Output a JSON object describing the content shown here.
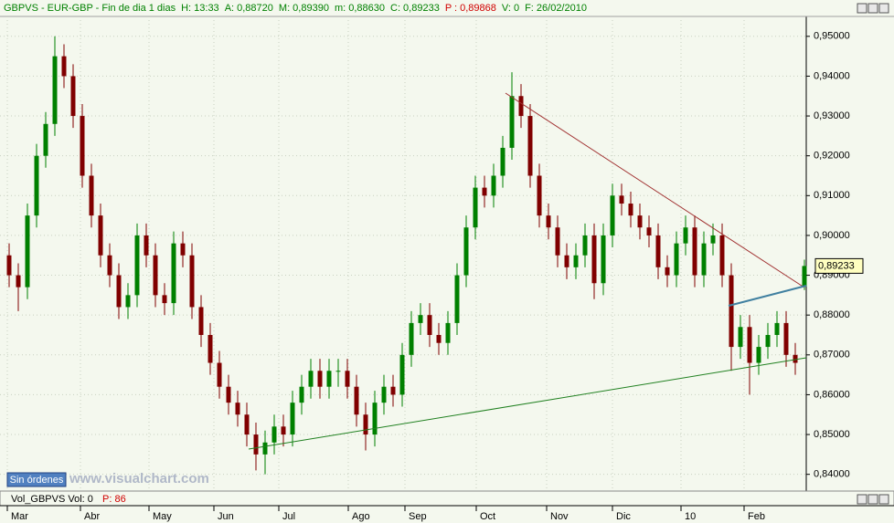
{
  "chart_data": {
    "type": "candlestick",
    "header": [
      {
        "text": "GBPVS - EUR-GBP - Fin de dia 1 dias",
        "color": "#008000"
      },
      {
        "text": "H: 13:33",
        "color": "#008000"
      },
      {
        "text": "A: 0,88720",
        "color": "#008000"
      },
      {
        "text": "M: 0,89390",
        "color": "#008000"
      },
      {
        "text": "m: 0,88630",
        "color": "#008000"
      },
      {
        "text": "C: 0,89233",
        "color": "#008000"
      },
      {
        "text": "P : 0,89868",
        "color": "#d00000"
      },
      {
        "text": "V: 0",
        "color": "#008000"
      },
      {
        "text": "F: 26/02/2010",
        "color": "#008000"
      }
    ],
    "volume_header": "Vol_GBPVS  Vol: 0",
    "volume_p": "P: 86",
    "status": "Sin órdenes",
    "watermark": "www.visualchart.com",
    "last_price": {
      "value": 0.89233,
      "label": "0,89233"
    },
    "up_color": "#008000",
    "down_color": "#800000",
    "grid": true,
    "xlim": [
      -1,
      87.2
    ],
    "xticks": [
      {
        "value": -0.2,
        "label": "Mar"
      },
      {
        "value": 7.8,
        "label": "Abr"
      },
      {
        "value": 15.3,
        "label": "May"
      },
      {
        "value": 22.4,
        "label": "Jun"
      },
      {
        "value": 29.5,
        "label": "Jul"
      },
      {
        "value": 37.1,
        "label": "Ago"
      },
      {
        "value": 43.3,
        "label": "Sep"
      },
      {
        "value": 51.1,
        "label": "Oct"
      },
      {
        "value": 58.8,
        "label": "Nov"
      },
      {
        "value": 66,
        "label": "Dic"
      },
      {
        "value": 73.5,
        "label": "10"
      },
      {
        "value": 80.4,
        "label": "Feb"
      }
    ],
    "ylim": [
      0.8358,
      0.955
    ],
    "yticks": [
      {
        "value": 0.84,
        "label": "0,84000"
      },
      {
        "value": 0.85,
        "label": "0,85000"
      },
      {
        "value": 0.86,
        "label": "0,86000"
      },
      {
        "value": 0.87,
        "label": "0,87000"
      },
      {
        "value": 0.88,
        "label": "0,88000"
      },
      {
        "value": 0.89,
        "label": "0,89000"
      },
      {
        "value": 0.9,
        "label": "0,90000"
      },
      {
        "value": 0.91,
        "label": "0,91000"
      },
      {
        "value": 0.92,
        "label": "0,92000"
      },
      {
        "value": 0.93,
        "label": "0,93000"
      },
      {
        "value": 0.94,
        "label": "0,94000"
      },
      {
        "value": 0.95,
        "label": "0,95000"
      }
    ],
    "open": [
      0.895,
      0.89,
      0.887,
      0.905,
      0.92,
      0.928,
      0.945,
      0.94,
      0.93,
      0.915,
      0.905,
      0.895,
      0.89,
      0.882,
      0.885,
      0.9,
      0.895,
      0.885,
      0.883,
      0.898,
      0.895,
      0.882,
      0.875,
      0.868,
      0.862,
      0.858,
      0.855,
      0.85,
      0.845,
      0.848,
      0.852,
      0.85,
      0.858,
      0.862,
      0.866,
      0.862,
      0.866,
      0.866,
      0.862,
      0.855,
      0.85,
      0.858,
      0.862,
      0.86,
      0.87,
      0.878,
      0.88,
      0.875,
      0.873,
      0.878,
      0.89,
      0.902,
      0.912,
      0.91,
      0.915,
      0.922,
      0.935,
      0.93,
      0.915,
      0.905,
      0.902,
      0.895,
      0.892,
      0.895,
      0.9,
      0.888,
      0.9,
      0.91,
      0.908,
      0.905,
      0.902,
      0.9,
      0.892,
      0.89,
      0.898,
      0.902,
      0.89,
      0.898,
      0.9,
      0.89,
      0.872,
      0.877,
      0.868,
      0.872,
      0.875,
      0.878,
      0.87,
      0.8872
    ],
    "high": [
      0.898,
      0.893,
      0.908,
      0.923,
      0.931,
      0.95,
      0.948,
      0.943,
      0.933,
      0.918,
      0.908,
      0.898,
      0.893,
      0.888,
      0.903,
      0.903,
      0.898,
      0.888,
      0.901,
      0.901,
      0.898,
      0.885,
      0.878,
      0.871,
      0.865,
      0.861,
      0.858,
      0.853,
      0.851,
      0.855,
      0.855,
      0.861,
      0.865,
      0.869,
      0.869,
      0.869,
      0.869,
      0.869,
      0.865,
      0.858,
      0.861,
      0.865,
      0.865,
      0.873,
      0.881,
      0.883,
      0.883,
      0.878,
      0.881,
      0.893,
      0.905,
      0.915,
      0.915,
      0.918,
      0.925,
      0.941,
      0.938,
      0.933,
      0.918,
      0.908,
      0.905,
      0.898,
      0.898,
      0.903,
      0.903,
      0.903,
      0.913,
      0.913,
      0.911,
      0.908,
      0.905,
      0.903,
      0.895,
      0.901,
      0.905,
      0.905,
      0.901,
      0.903,
      0.903,
      0.893,
      0.88,
      0.88,
      0.875,
      0.878,
      0.881,
      0.881,
      0.873,
      0.8939
    ],
    "low": [
      0.887,
      0.881,
      0.884,
      0.902,
      0.917,
      0.925,
      0.937,
      0.927,
      0.912,
      0.902,
      0.892,
      0.887,
      0.879,
      0.879,
      0.882,
      0.892,
      0.882,
      0.88,
      0.88,
      0.892,
      0.879,
      0.872,
      0.865,
      0.859,
      0.855,
      0.852,
      0.847,
      0.841,
      0.84,
      0.845,
      0.847,
      0.847,
      0.855,
      0.859,
      0.859,
      0.859,
      0.862,
      0.859,
      0.852,
      0.846,
      0.847,
      0.855,
      0.857,
      0.857,
      0.867,
      0.875,
      0.872,
      0.87,
      0.87,
      0.875,
      0.887,
      0.899,
      0.907,
      0.907,
      0.912,
      0.919,
      0.927,
      0.912,
      0.902,
      0.899,
      0.892,
      0.889,
      0.889,
      0.892,
      0.884,
      0.885,
      0.897,
      0.905,
      0.902,
      0.899,
      0.897,
      0.889,
      0.887,
      0.887,
      0.895,
      0.887,
      0.887,
      0.895,
      0.887,
      0.866,
      0.869,
      0.86,
      0.865,
      0.869,
      0.872,
      0.867,
      0.865,
      0.8863
    ],
    "close": [
      0.89,
      0.887,
      0.905,
      0.92,
      0.928,
      0.945,
      0.94,
      0.93,
      0.915,
      0.905,
      0.895,
      0.89,
      0.882,
      0.885,
      0.9,
      0.895,
      0.885,
      0.883,
      0.898,
      0.895,
      0.882,
      0.875,
      0.868,
      0.862,
      0.858,
      0.855,
      0.85,
      0.845,
      0.848,
      0.852,
      0.85,
      0.858,
      0.862,
      0.866,
      0.862,
      0.866,
      0.866,
      0.862,
      0.855,
      0.85,
      0.858,
      0.862,
      0.86,
      0.87,
      0.878,
      0.88,
      0.875,
      0.873,
      0.878,
      0.89,
      0.902,
      0.912,
      0.91,
      0.915,
      0.922,
      0.935,
      0.93,
      0.915,
      0.905,
      0.902,
      0.895,
      0.892,
      0.895,
      0.9,
      0.888,
      0.9,
      0.91,
      0.908,
      0.905,
      0.902,
      0.9,
      0.892,
      0.89,
      0.898,
      0.902,
      0.89,
      0.898,
      0.9,
      0.89,
      0.872,
      0.877,
      0.868,
      0.872,
      0.875,
      0.878,
      0.87,
      0.868,
      0.89233
    ]
  }
}
